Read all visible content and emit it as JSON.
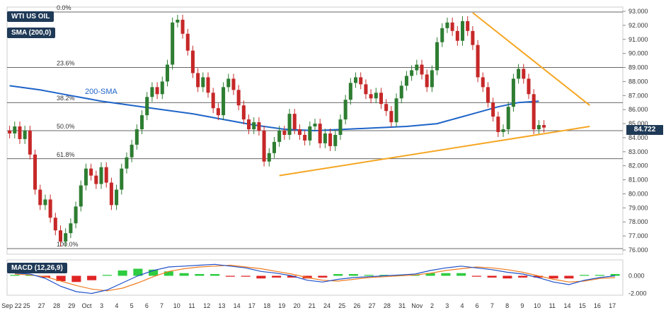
{
  "legend": {
    "symbol": "WTI US OIL",
    "sma_label": "SMA (200,0)",
    "macd_label": "MACD (12,26,9)"
  },
  "annotations": {
    "sma_inline": "200-SMA",
    "price_badge": "84.722"
  },
  "fib_levels": [
    {
      "label": "0.0%",
      "price": 92.95
    },
    {
      "label": "23.6%",
      "price": 89.0
    },
    {
      "label": "38.2%",
      "price": 86.5
    },
    {
      "label": "50.0%",
      "price": 84.5
    },
    {
      "label": "61.8%",
      "price": 82.5
    },
    {
      "label": "100.0%",
      "price": 76.1
    }
  ],
  "colors": {
    "bull": "#2e7d32",
    "bear": "#c62828",
    "sma": "#1e64c8",
    "trend": "#f5a623",
    "macd_line": "#1e50c8",
    "signal_line": "#f07b1f",
    "hist_pos": "#2ecc40",
    "hist_neg": "#e02424",
    "badge_bg": "#1f3a57"
  },
  "chart_data": {
    "type": "candlestick",
    "title": "WTI US OIL",
    "price_axis": {
      "min": 76.0,
      "max": 93.0,
      "ticks": [
        "93.000",
        "92.000",
        "91.000",
        "90.000",
        "89.000",
        "88.000",
        "87.000",
        "86.000",
        "85.000",
        "84.000",
        "83.000",
        "82.000",
        "81.000",
        "80.000",
        "79.000",
        "78.000",
        "77.000",
        "76.000"
      ]
    },
    "x_labels": [
      "Sep 22",
      "25",
      "27",
      "28",
      "29",
      "Oct",
      "3",
      "4",
      "5",
      "6",
      "7",
      "10",
      "11",
      "12",
      "13",
      "14",
      "17",
      "18",
      "19",
      "20",
      "21",
      "24",
      "25",
      "26",
      "27",
      "28",
      "31",
      "Nov",
      "2",
      "3",
      "4",
      "6",
      "7",
      "8",
      "9",
      "10",
      "11",
      "14",
      "15",
      "16",
      "17"
    ],
    "closes": [
      84.3,
      84.8,
      83.9,
      84.5,
      82.8,
      80.3,
      79.2,
      79.6,
      78.3,
      77.4,
      76.6,
      77.2,
      77.9,
      79.1,
      80.6,
      81.8,
      81.3,
      80.7,
      81.9,
      80.8,
      79.2,
      80.3,
      81.8,
      82.6,
      83.5,
      84.6,
      85.6,
      86.9,
      87.6,
      87.1,
      88.0,
      89.2,
      92.2,
      92.4,
      91.4,
      90.2,
      88.6,
      87.6,
      88.3,
      87.2,
      86.1,
      85.6,
      87.6,
      88.2,
      87.4,
      86.3,
      85.3,
      84.6,
      85.1,
      84.5,
      82.3,
      82.9,
      83.7,
      84.5,
      84.2,
      85.7,
      84.6,
      84.2,
      83.8,
      84.8,
      85.0,
      83.6,
      84.3,
      83.4,
      84.2,
      85.3,
      86.7,
      87.9,
      88.3,
      87.8,
      87.1,
      86.8,
      87.2,
      86.4,
      85.9,
      85.1,
      86.8,
      87.7,
      88.4,
      88.8,
      89.2,
      88.5,
      87.6,
      88.8,
      90.8,
      91.8,
      92.2,
      91.6,
      90.9,
      92.3,
      91.6,
      90.6,
      88.3,
      87.6,
      86.5,
      85.5,
      84.4,
      84.6,
      86.2,
      88.2,
      88.9,
      88.2,
      87.1,
      84.6,
      84.9,
      84.72
    ],
    "sma200": [
      [
        0,
        87.7
      ],
      [
        6,
        87.4
      ],
      [
        12,
        87.0
      ],
      [
        18,
        86.6
      ],
      [
        24,
        86.3
      ],
      [
        30,
        86.0
      ],
      [
        36,
        85.7
      ],
      [
        42,
        85.3
      ],
      [
        48,
        84.9
      ],
      [
        54,
        84.6
      ],
      [
        60,
        84.5
      ],
      [
        66,
        84.6
      ],
      [
        72,
        84.7
      ],
      [
        78,
        84.8
      ],
      [
        84,
        85.0
      ],
      [
        88,
        85.4
      ],
      [
        92,
        85.8
      ],
      [
        96,
        86.2
      ],
      [
        100,
        86.5
      ],
      [
        104,
        86.6
      ]
    ],
    "trendlines": [
      {
        "from": [
          53,
          81.3
        ],
        "to": [
          114,
          84.8
        ]
      },
      {
        "from": [
          91,
          92.9
        ],
        "to": [
          114,
          86.3
        ]
      }
    ],
    "macd": {
      "axis_ticks": [
        "0.000",
        "-2.000"
      ],
      "range": [
        -2.2,
        1.8
      ],
      "macd": [
        0.3,
        0.2,
        -0.3,
        -1.2,
        -1.8,
        -2.0,
        -1.6,
        -0.8,
        0.0,
        0.6,
        1.0,
        1.1,
        1.2,
        1.3,
        1.1,
        0.9,
        0.5,
        0.3,
        0.0,
        -0.5,
        -0.7,
        -0.4,
        -0.2,
        -0.1,
        0.0,
        0.1,
        0.2,
        0.6,
        0.9,
        1.1,
        0.9,
        0.7,
        0.4,
        0.2,
        -0.2,
        -0.7,
        -1.0,
        -0.5,
        -0.2,
        0.0
      ],
      "signal": [
        0.2,
        0.1,
        -0.1,
        -0.6,
        -1.1,
        -1.5,
        -1.7,
        -1.4,
        -0.8,
        -0.1,
        0.5,
        0.8,
        1.0,
        1.1,
        1.2,
        1.0,
        0.8,
        0.5,
        0.2,
        -0.2,
        -0.5,
        -0.6,
        -0.4,
        -0.2,
        -0.1,
        0.0,
        0.1,
        0.3,
        0.6,
        0.8,
        1.0,
        0.9,
        0.7,
        0.4,
        0.0,
        -0.4,
        -0.7,
        -0.6,
        -0.3,
        -0.2
      ],
      "hist": [
        0.1,
        0.1,
        -0.2,
        -0.6,
        -0.7,
        -0.5,
        0.1,
        0.6,
        0.8,
        0.7,
        0.5,
        0.3,
        0.2,
        0.2,
        -0.1,
        -0.1,
        -0.3,
        -0.2,
        -0.2,
        -0.3,
        -0.2,
        0.2,
        0.2,
        0.1,
        0.1,
        0.1,
        0.1,
        0.3,
        0.3,
        0.3,
        -0.1,
        -0.2,
        -0.3,
        -0.2,
        -0.2,
        -0.3,
        -0.3,
        0.1,
        0.1,
        0.2
      ]
    }
  }
}
